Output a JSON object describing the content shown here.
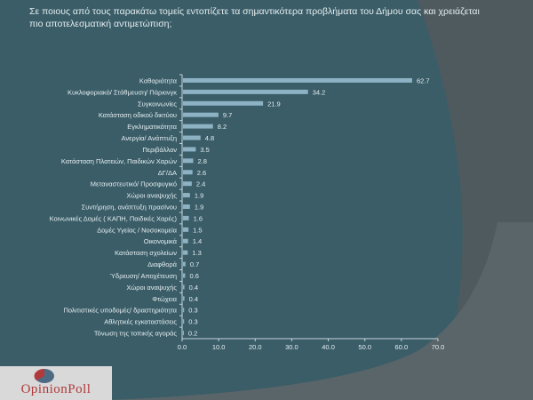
{
  "slide": {
    "title": "Σε ποιους από τους παρακάτω τομείς εντοπίζετε τα σημαντικότερα προβλήματα του Δήμου σας και χρειάζεται πιο αποτελεσματική αντιμετώπιση;"
  },
  "logo": {
    "text": "OpinionPoll",
    "subtext": "Έρευνες Δημοσκοπήσεις"
  },
  "colors": {
    "background": "#3a5d68",
    "bar": "#8db2c3",
    "text": "#e6eef0"
  },
  "chart_data": {
    "type": "bar",
    "orientation": "horizontal",
    "categories": [
      "Καθαριότητα",
      "Κυκλοφοριακό/ Στάθμευση/ Πάρκινγκ",
      "Συγκοινωνίες",
      "Κατάσταση οδικού δικτύου",
      "Εγκληματικότητα",
      "Ανεργία/ Ανάπτυξη",
      "Περιβάλλον",
      "Κατάσταση Πλατειών, Παιδικών Χαρών",
      "ΔΓ/ΔΑ",
      "Μεταναστευτικό/ Προσφυγικό",
      "Χώροι αναψυχής",
      "Συντήρηση, ανάπτυξη πρασίνου",
      "Κοινωνικές Δομές ( ΚΑΠΗ, Παιδικές Χαρές)",
      "Δομές Υγείας / Νοσοκομεία",
      "Οικονομικά",
      "Κατάσταση σχολείων",
      "Διαφθορά",
      "Ύδρευση/ Αποχέτευση",
      "Χώροι αναψυχής",
      "Φτώχεια",
      "Πολιτιστικές υποδομές/ δραστηριότητα",
      "Αθλητικές εγκαταστάσεις",
      "Τόνωση της τοπικής αγοράς"
    ],
    "values": [
      62.7,
      34.2,
      21.9,
      9.7,
      8.2,
      4.8,
      3.5,
      2.8,
      2.6,
      2.4,
      1.9,
      1.9,
      1.6,
      1.5,
      1.4,
      1.3,
      0.7,
      0.6,
      0.4,
      0.4,
      0.3,
      0.3,
      0.2
    ],
    "data_labels": [
      "62.7",
      "34.2",
      "21.9",
      "9.7",
      "8.2",
      "4.8",
      "3.5",
      "2.8",
      "2.6",
      "2.4",
      "1.9",
      "1.9",
      "1.6",
      "1.5",
      "1.4",
      "1.3",
      "0.7",
      "0.6",
      "0.4",
      "0.4",
      "0.3",
      "0.3",
      "0.2"
    ],
    "xlim": [
      0,
      70
    ],
    "xticks": [
      "0.0",
      "10.0",
      "20.0",
      "30.0",
      "40.0",
      "50.0",
      "60.0",
      "70.0"
    ],
    "grid": false,
    "legend": "none"
  }
}
